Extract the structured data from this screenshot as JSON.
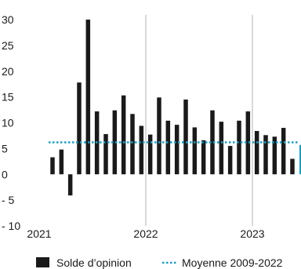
{
  "chart_data": {
    "type": "bar",
    "title": "",
    "xlabel": "",
    "ylabel": "",
    "ylim": [
      -10,
      30
    ],
    "y_ticks": [
      30,
      25,
      20,
      15,
      10,
      5,
      0,
      -5,
      -10
    ],
    "y_tick_labels": [
      "30",
      "25",
      "20",
      "15",
      "10",
      "5",
      "0",
      "- 5",
      "- 10"
    ],
    "x_tick_labels": [
      "2021",
      "2022",
      "2023"
    ],
    "grid": "vertical lines at year boundaries",
    "legend_position": "bottom",
    "colors": {
      "bars": "#1a1a1a",
      "average": "#1aa0c8",
      "highlight": "#1aa0c8",
      "grid": "#b3b3b3"
    },
    "months": [
      "2021-02",
      "2021-03",
      "2021-04",
      "2021-05",
      "2021-06",
      "2021-07",
      "2021-08",
      "2021-09",
      "2021-10",
      "2021-11",
      "2021-12",
      "2022-01",
      "2022-02",
      "2022-03",
      "2022-04",
      "2022-05",
      "2022-06",
      "2022-07",
      "2022-08",
      "2022-09",
      "2022-10",
      "2022-11",
      "2022-12",
      "2023-01",
      "2023-02",
      "2023-03",
      "2023-04",
      "2023-05",
      "2023-06"
    ],
    "series": [
      {
        "name": "Solde d'opinion",
        "values": [
          3.3,
          4.8,
          -4.1,
          17.8,
          30.0,
          12.2,
          7.8,
          12.4,
          15.3,
          11.7,
          9.4,
          7.7,
          14.9,
          10.4,
          9.6,
          14.5,
          9.1,
          6.6,
          12.4,
          10.2,
          5.5,
          10.4,
          12.2,
          8.4,
          7.6,
          7.3,
          9.0,
          3.0,
          5.7
        ],
        "last_value_highlighted": true
      },
      {
        "name": "Moyenne 2009-2022",
        "value": 6.2,
        "style": "dotted"
      }
    ]
  },
  "legend": {
    "bars_label": "Solde d’opinion",
    "average_label": "Moyenne 2009-2022"
  }
}
